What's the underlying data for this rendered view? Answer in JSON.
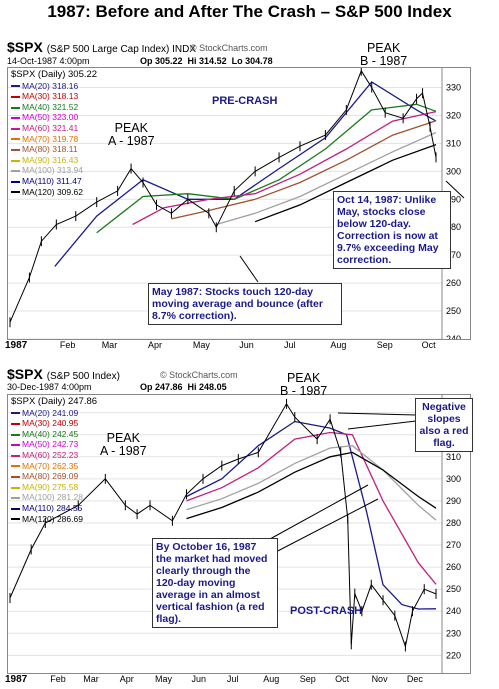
{
  "title": "1987:  Before and After The Crash – S&P 500 Index",
  "chart_data": [
    {
      "type": "line",
      "symbol": "$SPX",
      "description": "(S&P 500 Large Cap Index) INDX",
      "watermark": "© StockCharts.com",
      "date_line": "14-Oct-1987 4:00pm",
      "ohlc": {
        "op": "Op 305.22",
        "hi": "Hi 314.52",
        "lo": "Lo 304.78"
      },
      "last_label": "$SPX (Daily) 305.22",
      "x_labels": [
        "1987",
        "Feb",
        "Mar",
        "Apr",
        "May",
        "Jun",
        "Jul",
        "Aug",
        "Sep",
        "Oct"
      ],
      "y_ticks": [
        240,
        250,
        260,
        270,
        280,
        290,
        300,
        310,
        320,
        330
      ],
      "ylim": [
        240,
        337
      ],
      "grid": true,
      "legend": [
        {
          "label": "MA(20) 318.16",
          "color": "#1a1a8a"
        },
        {
          "label": "MA(30) 318.13",
          "color": "#c00000"
        },
        {
          "label": "MA(40) 321.52",
          "color": "#1a7a1a"
        },
        {
          "label": "MA(50) 323.00",
          "color": "#cc00cc"
        },
        {
          "label": "MA(60) 321.41",
          "color": "#c02080"
        },
        {
          "label": "MA(70) 319.78",
          "color": "#e07000"
        },
        {
          "label": "MA(80) 318.11",
          "color": "#a0522d"
        },
        {
          "label": "MA(90) 316.43",
          "color": "#c8b400"
        },
        {
          "label": "MA(100) 313.94",
          "color": "#a0a0a0"
        },
        {
          "label": "MA(110) 311.47",
          "color": "#000080"
        },
        {
          "label": "MA(120) 309.62",
          "color": "#000000"
        }
      ],
      "series": [
        {
          "name": "$SPX",
          "dates": [
            "1987-01-02",
            "1987-01-15",
            "1987-01-23",
            "1987-02-02",
            "1987-02-15",
            "1987-03-01",
            "1987-03-15",
            "1987-03-24",
            "1987-04-01",
            "1987-04-10",
            "1987-04-20",
            "1987-05-01",
            "1987-05-15",
            "1987-05-20",
            "1987-06-01",
            "1987-06-15",
            "1987-07-01",
            "1987-07-15",
            "1987-08-01",
            "1987-08-15",
            "1987-08-25",
            "1987-09-01",
            "1987-09-10",
            "1987-09-22",
            "1987-10-01",
            "1987-10-05",
            "1987-10-10",
            "1987-10-14"
          ],
          "values": [
            246,
            262,
            275,
            281,
            284,
            289,
            293,
            301,
            296,
            288,
            285,
            290,
            285,
            280,
            293,
            300,
            305,
            309,
            313,
            322,
            336,
            330,
            321,
            319,
            326,
            328,
            316,
            305
          ]
        },
        {
          "name": "MA(20)",
          "dates": [
            "1987-02-01",
            "1987-03-01",
            "1987-04-01",
            "1987-05-01",
            "1987-06-01",
            "1987-07-01",
            "1987-08-01",
            "1987-09-01",
            "1987-10-01",
            "1987-10-14"
          ],
          "values": [
            266,
            284,
            297,
            290,
            290,
            301,
            312,
            332,
            322,
            318
          ]
        },
        {
          "name": "MA(40)",
          "dates": [
            "1987-03-01",
            "1987-04-01",
            "1987-05-01",
            "1987-06-01",
            "1987-07-01",
            "1987-08-01",
            "1987-09-01",
            "1987-10-01",
            "1987-10-14"
          ],
          "values": [
            278,
            291,
            292,
            290,
            297,
            308,
            322,
            324,
            321.5
          ]
        },
        {
          "name": "MA(60)",
          "dates": [
            "1987-03-25",
            "1987-04-15",
            "1987-05-15",
            "1987-06-15",
            "1987-07-15",
            "1987-08-15",
            "1987-09-15",
            "1987-10-14"
          ],
          "values": [
            281,
            287,
            290,
            292,
            299,
            308,
            318,
            321.4
          ]
        },
        {
          "name": "MA(80)",
          "dates": [
            "1987-04-20",
            "1987-05-15",
            "1987-06-15",
            "1987-07-15",
            "1987-08-15",
            "1987-09-15",
            "1987-10-14"
          ],
          "values": [
            283,
            286,
            290,
            296,
            304,
            313,
            318.1
          ]
        },
        {
          "name": "MA(100)",
          "dates": [
            "1987-05-20",
            "1987-06-15",
            "1987-07-15",
            "1987-08-15",
            "1987-09-15",
            "1987-10-14"
          ],
          "values": [
            281,
            285,
            291,
            299,
            307,
            313.9
          ]
        },
        {
          "name": "MA(120)",
          "dates": [
            "1987-06-15",
            "1987-07-15",
            "1987-08-15",
            "1987-09-15",
            "1987-10-14"
          ],
          "values": [
            282,
            288,
            296,
            304,
            309.6
          ]
        }
      ],
      "annotations": {
        "peak_a": "PEAK\nA - 1987",
        "peak_b": "PEAK\nB - 1987",
        "pre_crash": "PRE-CRASH",
        "oct14": "Oct 14, 1987:  Unlike May, stocks close below 120-day.  Correction is now at 9.7% exceeding May correction.",
        "may": "May 1987:  Stocks touch 120-day moving average and bounce (after 8.7% correction)."
      }
    },
    {
      "type": "line",
      "symbol": "$SPX",
      "description": "(S&P 500 Index)",
      "watermark": "© StockCharts.com",
      "date_line": "30-Dec-1987 4:00pm",
      "ohlc": {
        "op": "Op 247.86",
        "hi": "Hi 248.05"
      },
      "last_label": "$SPX (Daily) 247.86",
      "x_labels": [
        "1987",
        "Feb",
        "Mar",
        "Apr",
        "May",
        "Jun",
        "Jul",
        "Aug",
        "Sep",
        "Oct",
        "Nov",
        "Dec"
      ],
      "y_ticks": [
        220,
        230,
        240,
        250,
        260,
        270,
        280,
        290,
        300,
        310,
        320,
        330
      ],
      "ylim": [
        212,
        338
      ],
      "grid": true,
      "legend": [
        {
          "label": "MA(20) 241.09",
          "color": "#1a1a8a"
        },
        {
          "label": "MA(30) 240.95",
          "color": "#c00000"
        },
        {
          "label": "MA(40) 242.45",
          "color": "#1a7a1a"
        },
        {
          "label": "MA(50) 242.73",
          "color": "#cc00cc"
        },
        {
          "label": "MA(60) 252.23",
          "color": "#c02080"
        },
        {
          "label": "MA(70) 262.35",
          "color": "#e07000"
        },
        {
          "label": "MA(80) 269.09",
          "color": "#a0522d"
        },
        {
          "label": "MA(90) 275.58",
          "color": "#c8b400"
        },
        {
          "label": "MA(100) 281.28",
          "color": "#a0a0a0"
        },
        {
          "label": "MA(110) 284.55",
          "color": "#000080"
        },
        {
          "label": "MA(120) 286.69",
          "color": "#000000"
        }
      ],
      "series": [
        {
          "name": "$SPX",
          "dates": [
            "1987-01-02",
            "1987-01-20",
            "1987-02-01",
            "1987-03-01",
            "1987-03-24",
            "1987-04-10",
            "1987-04-20",
            "1987-05-01",
            "1987-05-20",
            "1987-06-01",
            "1987-06-15",
            "1987-07-01",
            "1987-07-15",
            "1987-08-01",
            "1987-08-25",
            "1987-09-01",
            "1987-09-20",
            "1987-10-01",
            "1987-10-10",
            "1987-10-16",
            "1987-10-19",
            "1987-10-22",
            "1987-10-28",
            "1987-11-05",
            "1987-11-15",
            "1987-11-25",
            "1987-12-04",
            "1987-12-10",
            "1987-12-20",
            "1987-12-30"
          ],
          "values": [
            246,
            268,
            280,
            288,
            300,
            288,
            284,
            288,
            281,
            293,
            300,
            306,
            309,
            312,
            334,
            328,
            318,
            327,
            312,
            282,
            225,
            248,
            240,
            252,
            245,
            238,
            224,
            240,
            250,
            247.86
          ]
        },
        {
          "name": "MA(20)",
          "dates": [
            "1987-06-01",
            "1987-07-01",
            "1987-08-01",
            "1987-09-01",
            "1987-10-01",
            "1987-10-15",
            "1987-11-01",
            "1987-11-15",
            "1987-12-01",
            "1987-12-15",
            "1987-12-30"
          ],
          "values": [
            292,
            300,
            315,
            326,
            323,
            320,
            285,
            252,
            243,
            241,
            241.1
          ]
        },
        {
          "name": "MA(60)",
          "dates": [
            "1987-06-01",
            "1987-07-01",
            "1987-08-01",
            "1987-09-01",
            "1987-10-01",
            "1987-10-20",
            "1987-11-15",
            "1987-12-15",
            "1987-12-30"
          ],
          "values": [
            290,
            296,
            305,
            318,
            321,
            320,
            290,
            262,
            252.2
          ]
        },
        {
          "name": "MA(100)",
          "dates": [
            "1987-06-01",
            "1987-07-01",
            "1987-08-01",
            "1987-09-01",
            "1987-10-01",
            "1987-10-20",
            "1987-11-15",
            "1987-12-15",
            "1987-12-30"
          ],
          "values": [
            286,
            291,
            298,
            307,
            314,
            315,
            304,
            288,
            281.3
          ]
        },
        {
          "name": "MA(120)",
          "dates": [
            "1987-06-01",
            "1987-07-01",
            "1987-08-01",
            "1987-09-01",
            "1987-10-01",
            "1987-10-20",
            "1987-11-15",
            "1987-12-15",
            "1987-12-30"
          ],
          "values": [
            282,
            287,
            294,
            303,
            310,
            312,
            304,
            292,
            286.7
          ]
        }
      ],
      "annotations": {
        "peak_a": "PEAK\nA - 1987",
        "peak_b": "PEAK\nB - 1987",
        "post_crash": "POST-CRASH",
        "neg": "Negative slopes also a red flag.",
        "oct16": "By October 16, 1987 the market had moved clearly through the 120-day moving average in an almost vertical fashion (a red flag)."
      }
    }
  ]
}
